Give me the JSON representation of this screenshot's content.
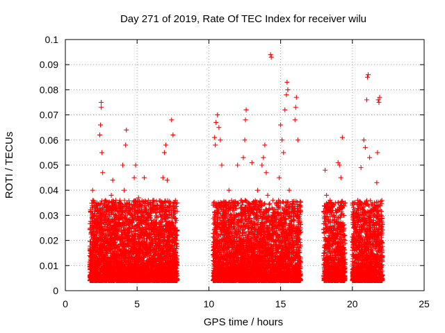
{
  "chart_data": {
    "type": "scatter",
    "title": "Day 271 of 2019, Rate Of TEC Index for receiver wilu",
    "xlabel": "GPS time / hours",
    "ylabel": "ROTI / TECUs",
    "xlim": [
      0,
      25
    ],
    "ylim": [
      0,
      0.1
    ],
    "x_ticks": [
      "0",
      "5",
      "10",
      "15",
      "20",
      "25"
    ],
    "y_ticks": [
      "0",
      "0.01",
      "0.02",
      "0.03",
      "0.04",
      "0.05",
      "0.06",
      "0.07",
      "0.08",
      "0.09",
      "0.1"
    ],
    "grid": true,
    "marker": "+",
    "color": "#ff0000",
    "series": [
      {
        "points": [
          [
            1.8,
            0.012
          ],
          [
            1.85,
            0.025
          ],
          [
            1.9,
            0.04
          ],
          [
            1.95,
            0.018
          ],
          [
            2.0,
            0.03
          ],
          [
            2.05,
            0.008
          ],
          [
            2.1,
            0.015
          ],
          [
            2.2,
            0.035
          ],
          [
            2.3,
            0.02
          ],
          [
            2.4,
            0.062
          ],
          [
            2.45,
            0.066
          ],
          [
            2.5,
            0.075
          ],
          [
            2.5,
            0.073
          ],
          [
            2.55,
            0.055
          ],
          [
            2.6,
            0.047
          ],
          [
            2.7,
            0.028
          ],
          [
            2.8,
            0.012
          ],
          [
            2.9,
            0.032
          ],
          [
            3.0,
            0.022
          ],
          [
            3.1,
            0.01
          ],
          [
            3.2,
            0.038
          ],
          [
            3.3,
            0.044
          ],
          [
            3.4,
            0.017
          ],
          [
            3.5,
            0.024
          ],
          [
            3.6,
            0.008
          ],
          [
            3.7,
            0.03
          ],
          [
            3.8,
            0.035
          ],
          [
            3.9,
            0.013
          ],
          [
            4.0,
            0.05
          ],
          [
            4.1,
            0.04
          ],
          [
            4.2,
            0.058
          ],
          [
            4.25,
            0.064
          ],
          [
            4.3,
            0.035
          ],
          [
            4.4,
            0.022
          ],
          [
            4.5,
            0.006
          ],
          [
            4.6,
            0.03
          ],
          [
            4.7,
            0.015
          ],
          [
            4.8,
            0.045
          ],
          [
            4.9,
            0.05
          ],
          [
            5.0,
            0.01
          ],
          [
            5.1,
            0.037
          ],
          [
            5.2,
            0.025
          ],
          [
            5.3,
            0.013
          ],
          [
            5.4,
            0.004
          ],
          [
            5.5,
            0.045
          ],
          [
            5.6,
            0.028
          ],
          [
            5.7,
            0.018
          ],
          [
            5.8,
            0.007
          ],
          [
            5.9,
            0.03
          ],
          [
            6.0,
            0.02
          ],
          [
            6.1,
            0.036
          ],
          [
            6.2,
            0.012
          ],
          [
            6.3,
            0.027
          ],
          [
            6.4,
            0.008
          ],
          [
            6.5,
            0.018
          ],
          [
            6.6,
            0.033
          ],
          [
            6.7,
            0.022
          ],
          [
            6.8,
            0.045
          ],
          [
            6.9,
            0.055
          ],
          [
            7.0,
            0.058
          ],
          [
            7.1,
            0.044
          ],
          [
            7.2,
            0.035
          ],
          [
            7.3,
            0.025
          ],
          [
            7.4,
            0.068
          ],
          [
            7.5,
            0.062
          ],
          [
            7.6,
            0.012
          ],
          [
            7.7,
            0.007
          ],
          [
            7.8,
            0.006
          ],
          [
            10.3,
            0.012
          ],
          [
            10.4,
            0.061
          ],
          [
            10.45,
            0.058
          ],
          [
            10.5,
            0.067
          ],
          [
            10.6,
            0.07
          ],
          [
            10.7,
            0.065
          ],
          [
            10.8,
            0.06
          ],
          [
            10.9,
            0.05
          ],
          [
            11.0,
            0.035
          ],
          [
            11.1,
            0.026
          ],
          [
            11.2,
            0.012
          ],
          [
            11.4,
            0.04
          ],
          [
            11.6,
            0.02
          ],
          [
            11.8,
            0.034
          ],
          [
            12.0,
            0.05
          ],
          [
            12.2,
            0.015
          ],
          [
            12.4,
            0.053
          ],
          [
            12.5,
            0.06
          ],
          [
            12.55,
            0.068
          ],
          [
            12.6,
            0.072
          ],
          [
            12.8,
            0.03
          ],
          [
            13.0,
            0.051
          ],
          [
            13.2,
            0.018
          ],
          [
            13.4,
            0.04
          ],
          [
            13.6,
            0.025
          ],
          [
            13.7,
            0.05
          ],
          [
            13.8,
            0.053
          ],
          [
            13.9,
            0.058
          ],
          [
            14.0,
            0.047
          ],
          [
            14.1,
            0.038
          ],
          [
            14.3,
            0.094
          ],
          [
            14.35,
            0.093
          ],
          [
            14.5,
            0.03
          ],
          [
            14.7,
            0.018
          ],
          [
            14.9,
            0.045
          ],
          [
            15.0,
            0.066
          ],
          [
            15.1,
            0.06
          ],
          [
            15.2,
            0.055
          ],
          [
            15.3,
            0.072
          ],
          [
            15.4,
            0.078
          ],
          [
            15.45,
            0.083
          ],
          [
            15.5,
            0.08
          ],
          [
            15.6,
            0.04
          ],
          [
            15.8,
            0.025
          ],
          [
            16.0,
            0.068
          ],
          [
            16.05,
            0.073
          ],
          [
            16.1,
            0.077
          ],
          [
            16.2,
            0.06
          ],
          [
            16.3,
            0.01
          ],
          [
            18.1,
            0.048
          ],
          [
            18.2,
            0.038
          ],
          [
            18.3,
            0.02
          ],
          [
            18.5,
            0.012
          ],
          [
            18.7,
            0.03
          ],
          [
            19.0,
            0.051
          ],
          [
            19.1,
            0.05
          ],
          [
            19.2,
            0.045
          ],
          [
            19.3,
            0.061
          ],
          [
            19.4,
            0.03
          ],
          [
            20.2,
            0.02
          ],
          [
            20.4,
            0.031
          ],
          [
            20.6,
            0.049
          ],
          [
            20.8,
            0.06
          ],
          [
            20.9,
            0.057
          ],
          [
            21.0,
            0.076
          ],
          [
            21.05,
            0.085
          ],
          [
            21.1,
            0.086
          ],
          [
            21.2,
            0.053
          ],
          [
            21.4,
            0.025
          ],
          [
            21.6,
            0.03
          ],
          [
            21.7,
            0.043
          ],
          [
            21.75,
            0.055
          ],
          [
            21.8,
            0.076
          ],
          [
            21.85,
            0.075
          ],
          [
            21.9,
            0.077
          ],
          [
            22.0,
            0.02
          ]
        ]
      }
    ]
  }
}
